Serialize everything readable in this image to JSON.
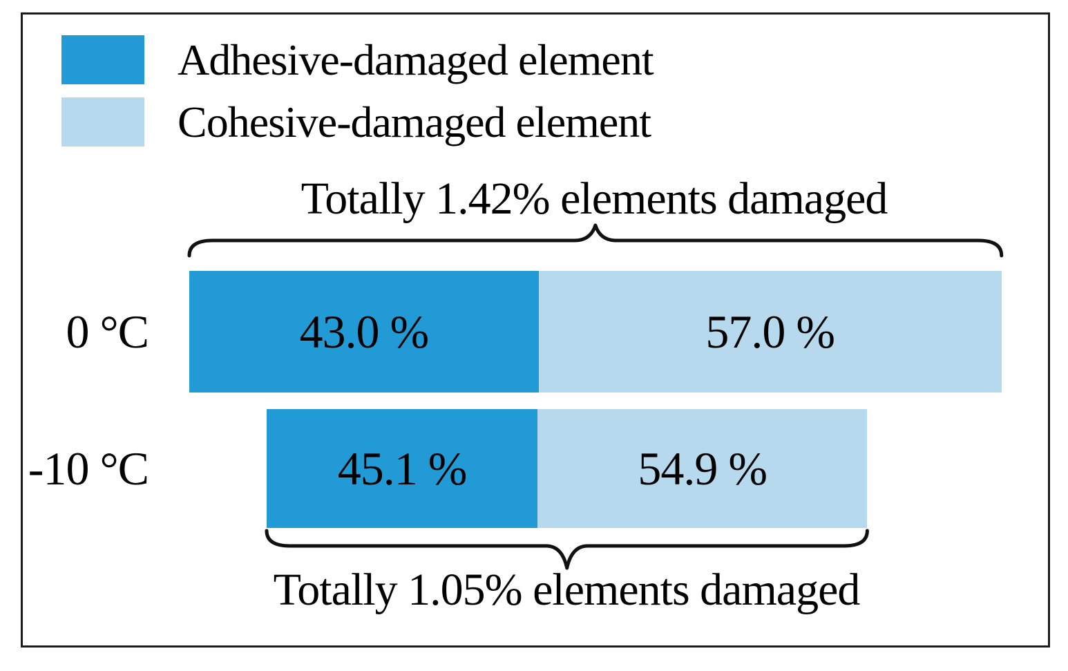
{
  "figure": {
    "legend": {
      "items": [
        {
          "label": "Adhesive-damaged element",
          "color": "#219AD6"
        },
        {
          "label": "Cohesive-damaged element",
          "color": "#B6D9EE"
        }
      ]
    },
    "annotations": {
      "top": "Totally 1.42% elements damaged",
      "bottom": "Totally 1.05% elements damaged"
    },
    "frame_color": "#1b1b1b",
    "text_color": "#000000"
  },
  "chart_data": {
    "type": "bar",
    "orientation": "horizontal-stacked",
    "categories": [
      "0 °C",
      "-10 °C"
    ],
    "series": [
      {
        "name": "Adhesive-damaged element",
        "color": "#219AD6",
        "values": [
          43.0,
          45.1
        ]
      },
      {
        "name": "Cohesive-damaged element",
        "color": "#B6D9EE",
        "values": [
          57.0,
          54.9
        ]
      }
    ],
    "bar_labels": [
      [
        "43.0 %",
        "57.0 %"
      ],
      [
        "45.1 %",
        "54.9 %"
      ]
    ],
    "totals_percent_damaged": [
      1.42,
      1.05
    ],
    "bar_width_proportional_to_totals": true,
    "annotations": [
      "Totally 1.42% elements damaged",
      "Totally 1.05% elements damaged"
    ],
    "legend_position": "top-left",
    "grid": false,
    "axes_shown": false
  }
}
